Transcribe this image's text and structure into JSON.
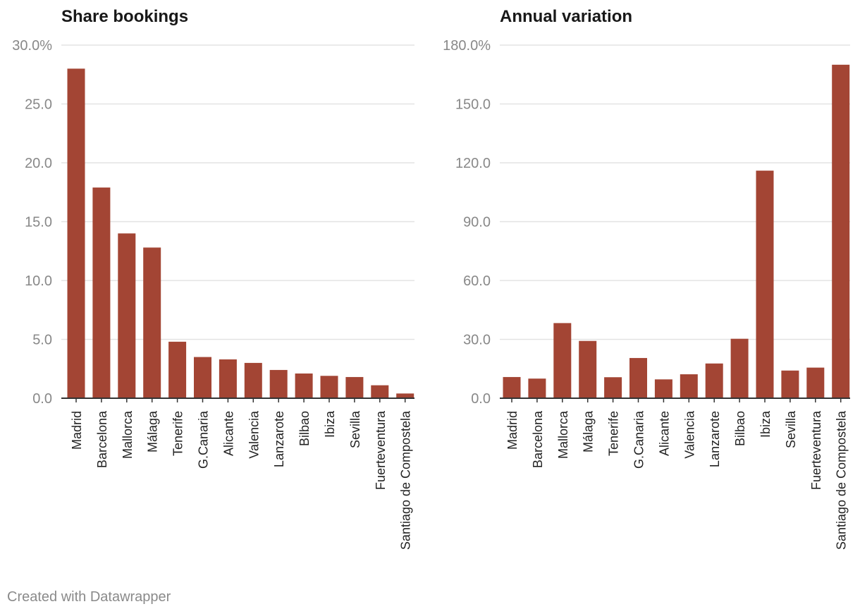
{
  "footer": "Created with Datawrapper",
  "colors": {
    "bar": "#a34534",
    "grid": "#e3e3e3",
    "axis": "#333333",
    "tick_text": "#888888",
    "label_text": "#222222"
  },
  "chart_data": [
    {
      "type": "bar",
      "title": "Share bookings",
      "categories": [
        "Madrid",
        "Barcelona",
        "Mallorca",
        "Málaga",
        "Tenerife",
        "G.Canaria",
        "Alicante",
        "Valencia",
        "Lanzarote",
        "Bilbao",
        "Ibiza",
        "Sevilla",
        "Fuerteventura",
        "Santiago de Compostela"
      ],
      "values": [
        28.0,
        17.9,
        14.0,
        12.8,
        4.8,
        3.5,
        3.3,
        3.0,
        2.4,
        2.1,
        1.9,
        1.8,
        1.1,
        0.4
      ],
      "ylim": [
        0,
        30
      ],
      "yticks": [
        0,
        5,
        10,
        15,
        20,
        25,
        30
      ],
      "ytick_labels": [
        "0.0",
        "5.0",
        "10.0",
        "15.0",
        "20.0",
        "25.0",
        "30.0%"
      ],
      "xlabel": "",
      "ylabel": ""
    },
    {
      "type": "bar",
      "title": "Annual variation",
      "categories": [
        "Madrid",
        "Barcelona",
        "Mallorca",
        "Málaga",
        "Tenerife",
        "G.Canaria",
        "Alicante",
        "Valencia",
        "Lanzarote",
        "Bilbao",
        "Ibiza",
        "Sevilla",
        "Fuerteventura",
        "Santiago de Compostela"
      ],
      "values": [
        10.8,
        10.0,
        38.3,
        29.2,
        10.7,
        20.5,
        9.6,
        12.2,
        17.7,
        30.3,
        116.0,
        14.1,
        15.6,
        170.0
      ],
      "ylim": [
        0,
        180
      ],
      "yticks": [
        0,
        30,
        60,
        90,
        120,
        150,
        180
      ],
      "ytick_labels": [
        "0.0",
        "30.0",
        "60.0",
        "90.0",
        "120.0",
        "150.0",
        "180.0%"
      ],
      "xlabel": "",
      "ylabel": ""
    }
  ]
}
